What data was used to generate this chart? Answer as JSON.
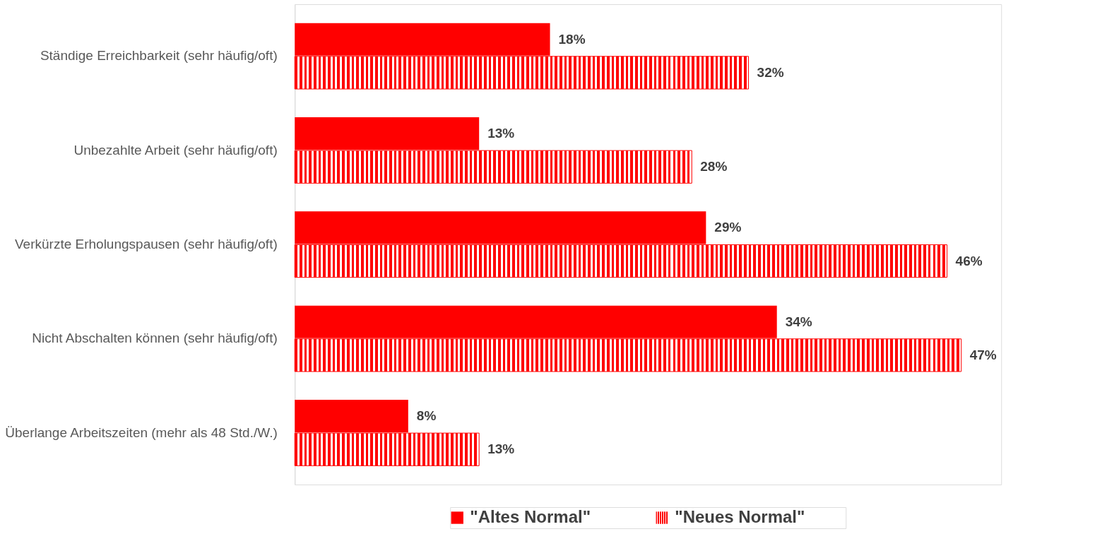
{
  "chart_data": {
    "type": "bar",
    "orientation": "horizontal",
    "tick_labels": "y",
    "legend": "bottom",
    "grid": false,
    "categories": [
      "Ständige Erreichbarkeit (sehr häufig/oft)",
      "Unbezahlte Arbeit (sehr häufig/oft)",
      "Verkürzte Erholungspausen (sehr häufig/oft)",
      "Nicht Abschalten können (sehr häufig/oft)",
      "Überlange Arbeitszeiten (mehr als 48 Std./W.)"
    ],
    "series": [
      {
        "name": "\"Altes Normal\"",
        "color": "#ff0000",
        "values": [
          18,
          13,
          29,
          34,
          8
        ],
        "value_labels": [
          "18%",
          "13%",
          "29%",
          "34%",
          "8%"
        ]
      },
      {
        "name": "\"Neues Normal\"",
        "color": "#ff0000",
        "values": [
          32,
          28,
          46,
          47,
          13
        ],
        "value_labels": [
          "32%",
          "28%",
          "46%",
          "47%",
          "13%"
        ]
      }
    ]
  }
}
